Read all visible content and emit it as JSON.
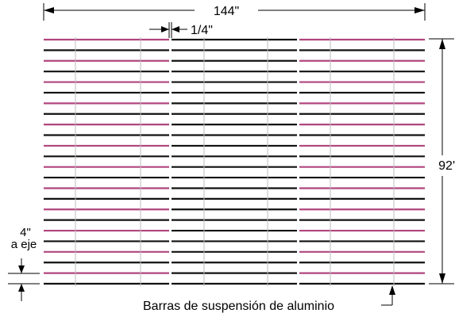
{
  "dimensions": {
    "width_label": "144\"",
    "height_label": "92'",
    "gap_label": "1/4\"",
    "spacing_label_line1": "4\"",
    "spacing_label_line2": "a eje"
  },
  "callout": {
    "text": "Barras de suspensión de aluminio"
  },
  "panels": {
    "count": 3,
    "row_count": 24,
    "pattern": [
      "magenta",
      "black",
      "magenta"
    ],
    "rail_shift_per_row": 1
  },
  "colors": {
    "magenta": "#b0457e",
    "black": "#111111",
    "rail": "#bdbdbd",
    "dimension": "#000000"
  }
}
